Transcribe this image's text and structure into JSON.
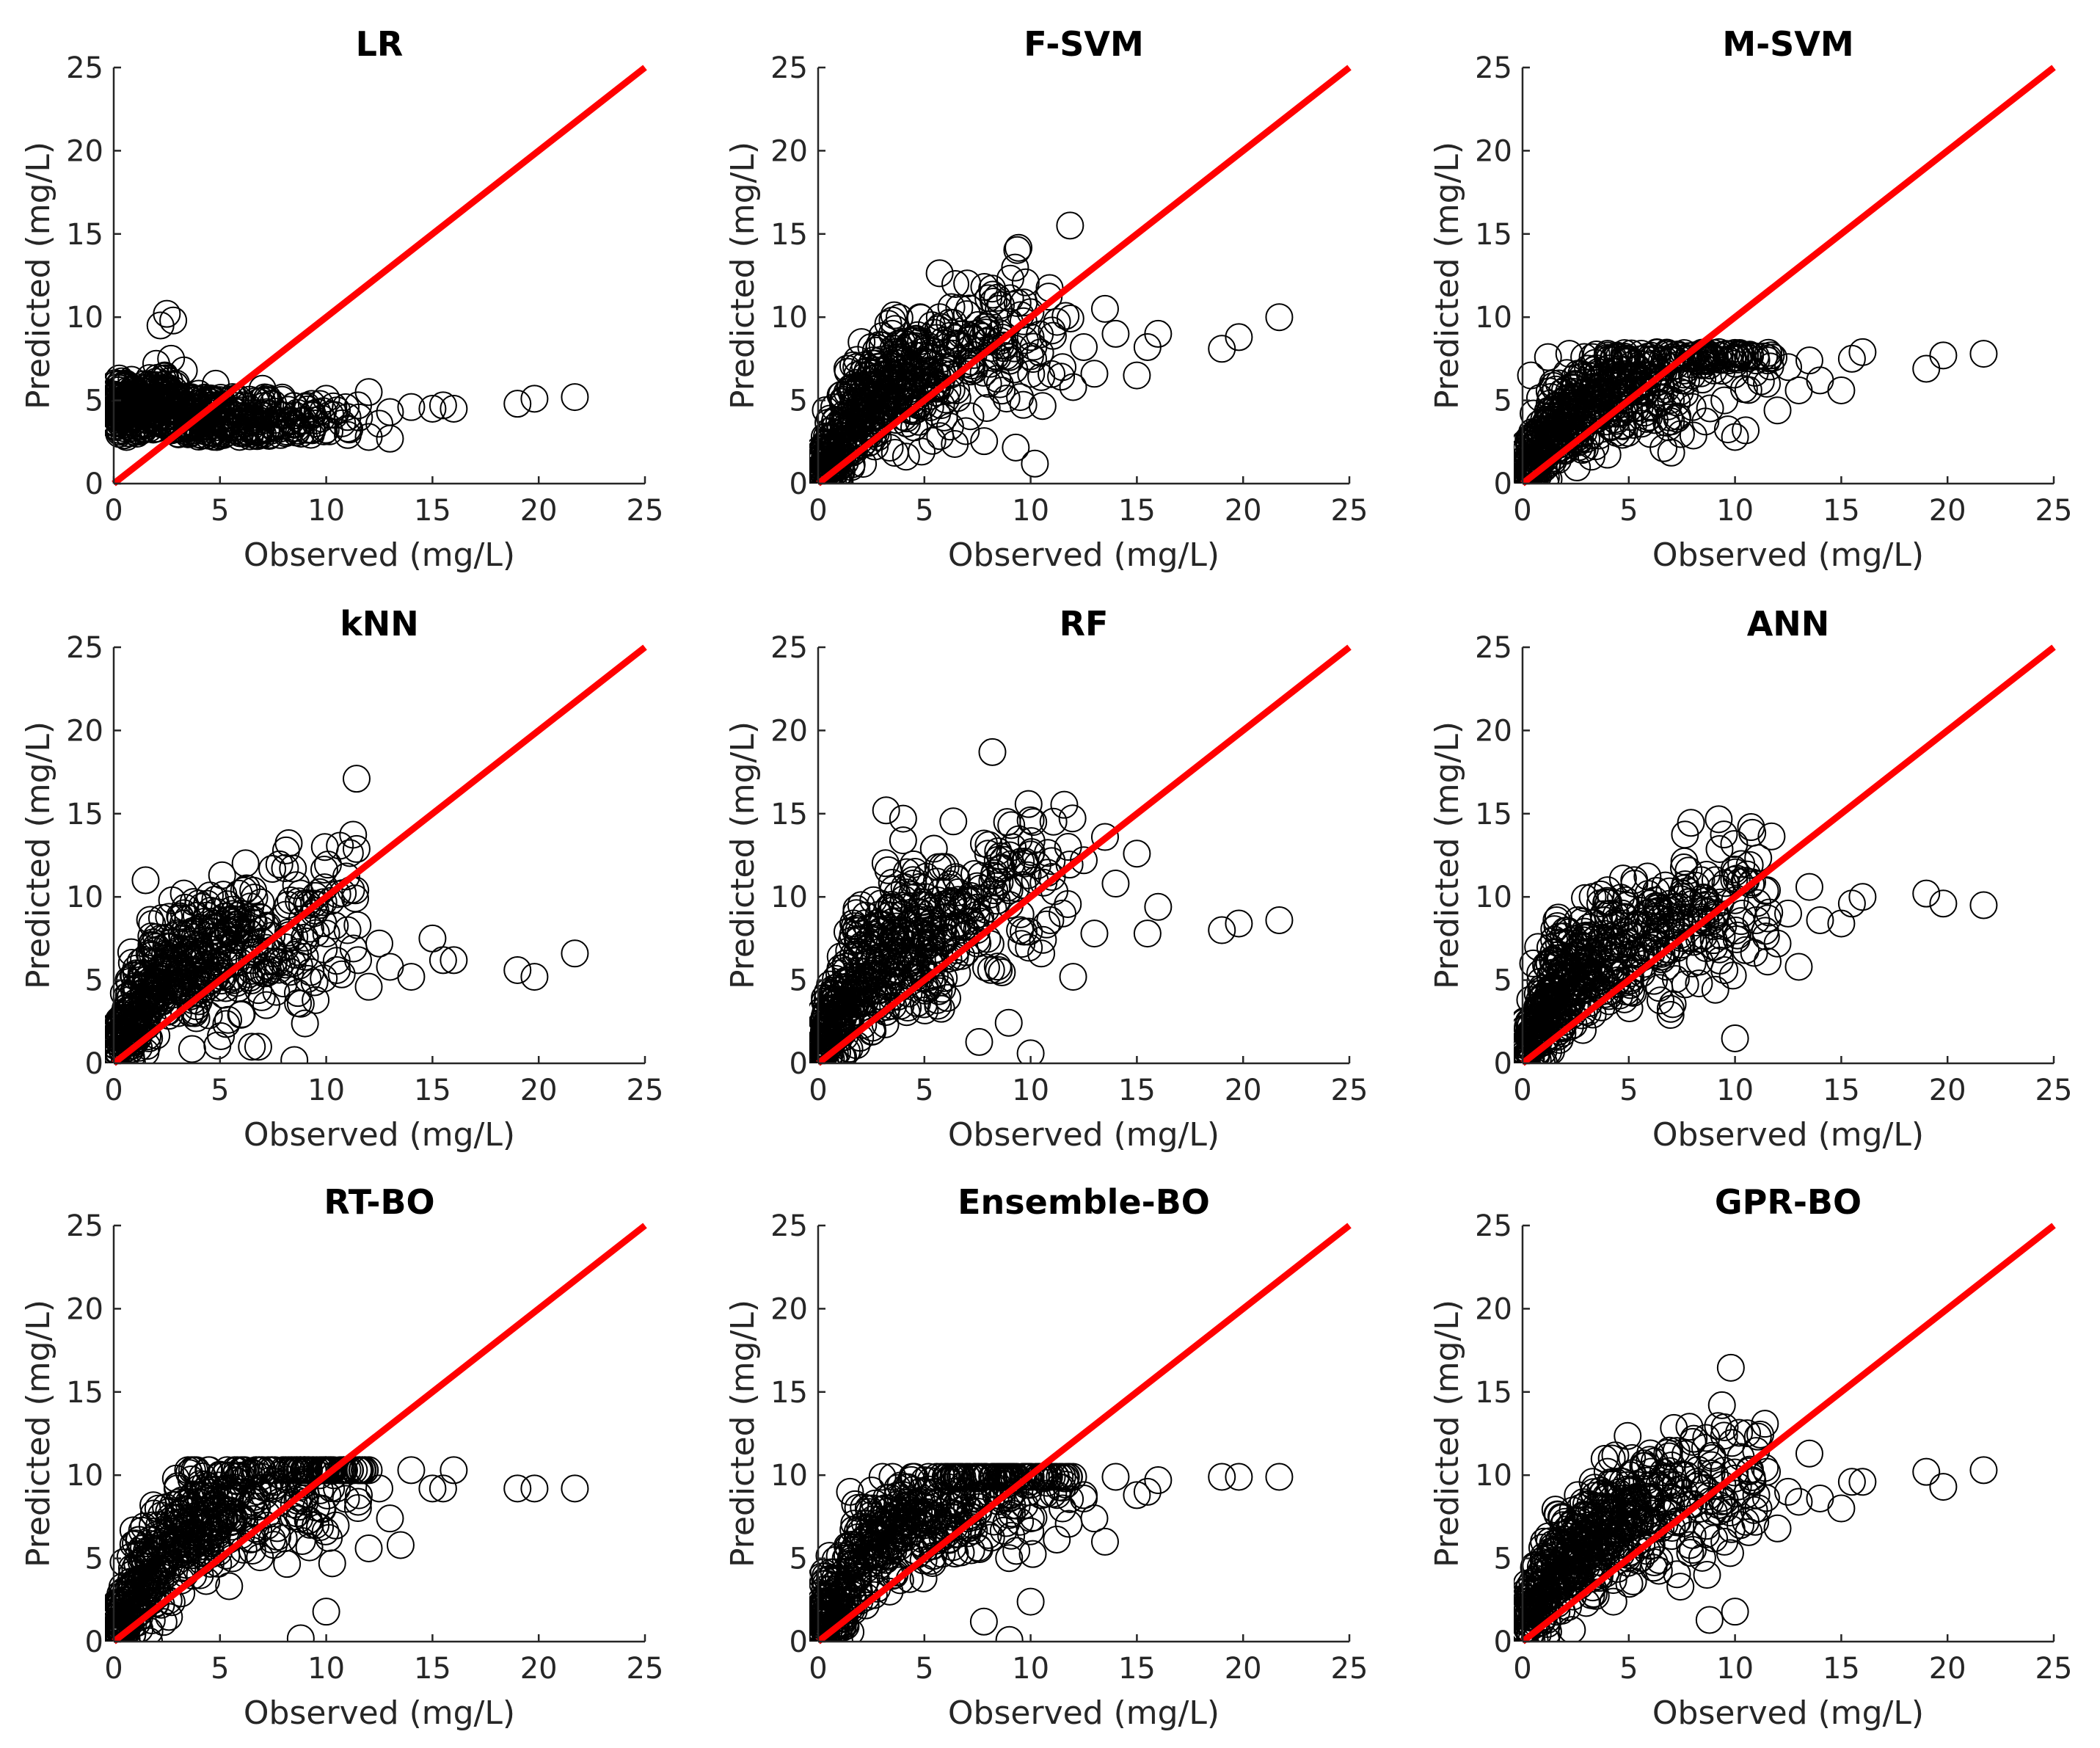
{
  "colors": {
    "marker": "#000000",
    "reference_line": "#ff0000",
    "axis": "#262626",
    "background": "#ffffff"
  },
  "chart_data": [
    {
      "type": "scatter",
      "title": "LR",
      "xlabel": "Observed (mg/L)",
      "ylabel": "Predicted (mg/L)",
      "xlim": [
        0,
        25
      ],
      "ylim": [
        0,
        25
      ],
      "xticks": [
        "0",
        "5",
        "10",
        "15",
        "20",
        "25"
      ],
      "yticks": [
        "0",
        "5",
        "10",
        "15",
        "20",
        "25"
      ],
      "marker": "open-circle",
      "reference_line": {
        "x": [
          0,
          25
        ],
        "y": [
          0,
          25
        ]
      },
      "points": {
        "x": [
          0.1,
          0.3,
          0.5,
          0.8,
          1.0,
          1.2,
          1.5,
          1.8,
          2.0,
          2.2,
          2.5,
          2.8,
          3.0,
          3.3,
          3.6,
          4.0,
          4.4,
          4.8,
          5.2,
          5.6,
          6.0,
          6.5,
          7.0,
          7.5,
          8.0,
          8.5,
          9.0,
          9.5,
          10.0,
          10.5,
          11.0,
          11.5,
          12.0,
          12.5,
          13.0,
          14.0,
          15.0,
          15.5,
          16.0,
          19.0,
          19.8,
          21.7,
          2.0,
          2.4,
          2.7,
          12.0,
          13.0,
          0.2,
          0.6,
          1.1
        ],
        "y": [
          3.4,
          3.8,
          2.9,
          4.2,
          3.1,
          4.6,
          3.6,
          5.0,
          3.3,
          9.5,
          10.2,
          9.8,
          4.1,
          6.8,
          3.0,
          5.4,
          4.0,
          6.0,
          3.5,
          5.2,
          4.4,
          3.2,
          5.7,
          4.8,
          4.1,
          3.6,
          4.6,
          3.8,
          5.1,
          4.4,
          4.0,
          4.7,
          5.5,
          3.6,
          4.3,
          4.6,
          4.5,
          4.7,
          4.5,
          4.8,
          5.1,
          5.2,
          7.2,
          6.5,
          7.5,
          2.8,
          2.7,
          5.2,
          2.8,
          3.0
        ]
      }
    },
    {
      "type": "scatter",
      "title": "F-SVM",
      "xlabel": "Observed (mg/L)",
      "ylabel": "Predicted (mg/L)",
      "xlim": [
        0,
        25
      ],
      "ylim": [
        0,
        25
      ],
      "xticks": [
        "0",
        "5",
        "10",
        "15",
        "20",
        "25"
      ],
      "yticks": [
        "0",
        "5",
        "10",
        "15",
        "20",
        "25"
      ],
      "marker": "open-circle",
      "reference_line": {
        "x": [
          0,
          25
        ],
        "y": [
          0,
          25
        ]
      },
      "points": {
        "x": [
          0.1,
          0.3,
          0.5,
          0.8,
          1.0,
          1.3,
          1.6,
          2.0,
          2.3,
          2.6,
          3.0,
          3.3,
          3.6,
          4.0,
          4.4,
          4.8,
          5.2,
          5.6,
          6.0,
          6.5,
          7.0,
          7.5,
          8.0,
          8.5,
          9.0,
          9.5,
          10.0,
          10.5,
          11.0,
          11.5,
          12.0,
          12.5,
          13.0,
          13.5,
          14.0,
          15.0,
          15.5,
          16.0,
          19.0,
          19.8,
          21.7,
          10.2,
          1.8,
          2.5,
          3.5
        ],
        "y": [
          0.5,
          2.2,
          0.8,
          3.4,
          1.6,
          4.0,
          2.6,
          5.8,
          3.2,
          7.4,
          4.6,
          9.6,
          6.2,
          8.0,
          5.0,
          10.0,
          6.8,
          4.2,
          8.4,
          5.6,
          7.2,
          9.0,
          6.0,
          10.5,
          7.6,
          5.2,
          8.8,
          6.4,
          9.2,
          7.0,
          5.8,
          8.2,
          6.6,
          10.5,
          9.0,
          6.5,
          8.2,
          9.0,
          8.1,
          8.8,
          10.0,
          1.2,
          7.0,
          8.2,
          9.8
        ]
      }
    },
    {
      "type": "scatter",
      "title": "M-SVM",
      "xlabel": "Observed (mg/L)",
      "ylabel": "Predicted (mg/L)",
      "xlim": [
        0,
        25
      ],
      "ylim": [
        0,
        25
      ],
      "xticks": [
        "0",
        "5",
        "10",
        "15",
        "20",
        "25"
      ],
      "yticks": [
        "0",
        "5",
        "10",
        "15",
        "20",
        "25"
      ],
      "marker": "open-circle",
      "reference_line": {
        "x": [
          0,
          25
        ],
        "y": [
          0,
          25
        ]
      },
      "points": {
        "x": [
          0.1,
          0.3,
          0.5,
          0.8,
          1.0,
          1.3,
          1.6,
          2.0,
          2.3,
          2.6,
          3.0,
          3.3,
          3.6,
          4.0,
          4.4,
          4.8,
          5.2,
          5.6,
          6.0,
          6.5,
          7.0,
          7.5,
          8.0,
          8.5,
          9.0,
          9.5,
          10.0,
          10.5,
          11.0,
          11.5,
          12.0,
          12.5,
          13.0,
          13.5,
          14.0,
          15.0,
          15.5,
          16.0,
          19.0,
          19.8,
          21.7,
          0.4,
          1.2,
          2.2,
          10.0
        ],
        "y": [
          0.6,
          2.4,
          1.0,
          3.6,
          1.8,
          4.4,
          2.8,
          5.6,
          3.4,
          6.6,
          4.8,
          7.6,
          5.8,
          7.8,
          4.2,
          7.5,
          6.4,
          3.6,
          7.4,
          5.2,
          7.0,
          6.2,
          4.6,
          7.6,
          6.8,
          5.0,
          7.2,
          3.2,
          7.4,
          6.0,
          4.4,
          7.0,
          5.6,
          7.4,
          6.2,
          5.6,
          7.5,
          7.9,
          6.9,
          7.7,
          7.8,
          6.5,
          7.6,
          7.8,
          2.8
        ]
      }
    },
    {
      "type": "scatter",
      "title": "kNN",
      "xlabel": "Observed (mg/L)",
      "ylabel": "Predicted (mg/L)",
      "xlim": [
        0,
        25
      ],
      "ylim": [
        0,
        25
      ],
      "xticks": [
        "0",
        "5",
        "10",
        "15",
        "20",
        "25"
      ],
      "yticks": [
        "0",
        "5",
        "10",
        "15",
        "20",
        "25"
      ],
      "marker": "open-circle",
      "reference_line": {
        "x": [
          0,
          25
        ],
        "y": [
          0,
          25
        ]
      },
      "points": {
        "x": [
          0.1,
          0.3,
          0.5,
          0.8,
          1.0,
          1.3,
          1.6,
          2.0,
          2.3,
          2.6,
          3.0,
          3.3,
          3.6,
          4.0,
          4.4,
          4.8,
          5.2,
          5.6,
          6.0,
          6.5,
          7.0,
          7.5,
          8.0,
          8.5,
          9.0,
          9.5,
          10.0,
          10.5,
          11.0,
          11.5,
          12.0,
          12.5,
          13.0,
          14.0,
          15.0,
          15.5,
          16.0,
          19.0,
          19.8,
          21.7,
          1.5,
          5.1,
          6.5,
          8.5,
          9.0
        ],
        "y": [
          0.8,
          2.6,
          1.4,
          4.0,
          2.2,
          5.4,
          3.2,
          7.0,
          4.0,
          8.8,
          5.4,
          10.2,
          6.8,
          9.6,
          4.6,
          8.4,
          7.4,
          5.2,
          9.0,
          6.2,
          8.0,
          6.6,
          4.8,
          7.6,
          6.4,
          3.8,
          7.8,
          5.6,
          8.0,
          6.2,
          4.6,
          7.2,
          5.8,
          5.2,
          7.5,
          6.2,
          6.2,
          5.6,
          5.2,
          6.6,
          11.0,
          11.3,
          1.0,
          0.2,
          2.4
        ]
      }
    },
    {
      "type": "scatter",
      "title": "RF",
      "xlabel": "Observed (mg/L)",
      "ylabel": "Predicted (mg/L)",
      "xlim": [
        0,
        25
      ],
      "ylim": [
        0,
        25
      ],
      "xticks": [
        "0",
        "5",
        "10",
        "15",
        "20",
        "25"
      ],
      "yticks": [
        "0",
        "5",
        "10",
        "15",
        "20",
        "25"
      ],
      "marker": "open-circle",
      "reference_line": {
        "x": [
          0,
          25
        ],
        "y": [
          0,
          25
        ]
      },
      "points": {
        "x": [
          0.1,
          0.3,
          0.5,
          0.8,
          1.0,
          1.3,
          1.6,
          2.0,
          2.3,
          2.6,
          3.0,
          3.3,
          3.6,
          4.0,
          4.4,
          4.8,
          5.2,
          5.6,
          6.0,
          6.5,
          7.0,
          7.5,
          8.0,
          8.5,
          9.0,
          9.5,
          10.0,
          10.5,
          11.0,
          11.5,
          12.0,
          12.5,
          13.0,
          13.5,
          14.0,
          15.0,
          15.5,
          16.0,
          19.0,
          19.8,
          21.7,
          8.2,
          3.2,
          4.0,
          10.0
        ],
        "y": [
          0.4,
          2.8,
          1.2,
          4.4,
          2.4,
          6.0,
          3.6,
          7.8,
          4.6,
          9.8,
          6.2,
          11.6,
          7.4,
          13.4,
          5.2,
          10.6,
          8.2,
          3.8,
          11.8,
          6.8,
          9.4,
          7.2,
          12.6,
          5.6,
          10.4,
          8.0,
          14.6,
          6.6,
          11.2,
          9.0,
          5.2,
          12.2,
          7.8,
          13.6,
          10.8,
          12.6,
          7.8,
          9.4,
          8.0,
          8.4,
          8.6,
          18.7,
          15.2,
          14.7,
          0.6
        ]
      }
    },
    {
      "type": "scatter",
      "title": "ANN",
      "xlabel": "Observed (mg/L)",
      "ylabel": "Predicted (mg/L)",
      "xlim": [
        0,
        25
      ],
      "ylim": [
        0,
        25
      ],
      "xticks": [
        "0",
        "5",
        "10",
        "15",
        "20",
        "25"
      ],
      "yticks": [
        "0",
        "5",
        "10",
        "15",
        "20",
        "25"
      ],
      "marker": "open-circle",
      "reference_line": {
        "x": [
          0,
          25
        ],
        "y": [
          0,
          25
        ]
      },
      "points": {
        "x": [
          0.1,
          0.3,
          0.5,
          0.8,
          1.0,
          1.3,
          1.6,
          2.0,
          2.3,
          2.6,
          3.0,
          3.3,
          3.6,
          4.0,
          4.4,
          4.8,
          5.2,
          5.6,
          6.0,
          6.5,
          7.0,
          7.5,
          8.0,
          8.5,
          9.0,
          9.5,
          10.0,
          10.5,
          11.0,
          11.5,
          12.0,
          12.5,
          13.0,
          13.5,
          14.0,
          15.0,
          15.5,
          16.0,
          19.0,
          19.8,
          21.7,
          10.0,
          0.5,
          1.6,
          7.5
        ],
        "y": [
          0.6,
          2.4,
          1.2,
          3.8,
          2.0,
          5.2,
          3.0,
          7.2,
          4.2,
          8.6,
          5.6,
          10.0,
          6.8,
          10.4,
          4.8,
          8.8,
          7.6,
          5.4,
          9.6,
          6.4,
          8.4,
          10.2,
          6.0,
          9.2,
          7.4,
          5.6,
          9.8,
          6.8,
          8.6,
          10.4,
          7.2,
          9.0,
          5.8,
          10.6,
          8.6,
          8.4,
          9.6,
          10.0,
          10.2,
          9.6,
          9.5,
          1.5,
          6.0,
          8.6,
          10.0
        ]
      }
    },
    {
      "type": "scatter",
      "title": "RT-BO",
      "xlabel": "Observed (mg/L)",
      "ylabel": "Predicted (mg/L)",
      "xlim": [
        0,
        25
      ],
      "ylim": [
        0,
        25
      ],
      "xticks": [
        "0",
        "5",
        "10",
        "15",
        "20",
        "25"
      ],
      "yticks": [
        "0",
        "5",
        "10",
        "15",
        "20",
        "25"
      ],
      "marker": "open-circle",
      "reference_line": {
        "x": [
          0,
          25
        ],
        "y": [
          0,
          25
        ]
      },
      "points": {
        "x": [
          0.1,
          0.3,
          0.5,
          0.8,
          1.0,
          1.3,
          1.6,
          2.0,
          2.3,
          2.6,
          3.0,
          3.5,
          4.0,
          4.5,
          5.0,
          5.5,
          6.0,
          6.5,
          7.0,
          7.5,
          8.0,
          8.5,
          9.0,
          9.5,
          10.0,
          10.5,
          11.0,
          11.5,
          12.0,
          12.5,
          13.0,
          14.0,
          15.0,
          15.5,
          16.0,
          19.0,
          19.8,
          21.7,
          8.8,
          10.0,
          3.0,
          6.0,
          12.0,
          13.5,
          2.2
        ],
        "y": [
          0.4,
          2.2,
          1.0,
          3.6,
          1.8,
          4.8,
          3.0,
          6.4,
          4.2,
          7.8,
          5.4,
          10.3,
          9.2,
          10.3,
          7.4,
          9.2,
          10.3,
          8.4,
          10.3,
          9.2,
          6.2,
          10.3,
          8.4,
          7.0,
          10.3,
          9.2,
          10.3,
          8.4,
          10.3,
          9.2,
          7.4,
          10.3,
          9.2,
          9.2,
          10.3,
          9.2,
          9.2,
          9.2,
          0.2,
          1.8,
          9.2,
          6.4,
          5.6,
          5.8,
          5.8
        ]
      }
    },
    {
      "type": "scatter",
      "title": "Ensemble-BO",
      "xlabel": "Observed (mg/L)",
      "ylabel": "Predicted (mg/L)",
      "xlim": [
        0,
        25
      ],
      "ylim": [
        0,
        25
      ],
      "xticks": [
        "0",
        "5",
        "10",
        "15",
        "20",
        "25"
      ],
      "yticks": [
        "0",
        "5",
        "10",
        "15",
        "20",
        "25"
      ],
      "marker": "open-circle",
      "reference_line": {
        "x": [
          0,
          25
        ],
        "y": [
          0,
          25
        ]
      },
      "points": {
        "x": [
          0.1,
          0.3,
          0.5,
          0.8,
          1.0,
          1.3,
          1.6,
          2.0,
          2.3,
          2.6,
          3.0,
          3.5,
          4.0,
          4.5,
          5.0,
          5.5,
          6.0,
          6.5,
          7.0,
          7.5,
          8.0,
          8.5,
          9.0,
          9.5,
          10.0,
          10.5,
          11.0,
          11.5,
          12.0,
          12.5,
          13.0,
          14.0,
          15.0,
          15.5,
          16.0,
          19.0,
          19.8,
          21.7,
          9.0,
          10.0,
          7.8,
          1.5,
          2.5,
          13.5,
          12.5
        ],
        "y": [
          0.4,
          2.4,
          1.2,
          3.8,
          2.0,
          5.0,
          3.2,
          6.6,
          4.4,
          8.0,
          5.6,
          9.9,
          8.8,
          9.9,
          7.0,
          9.0,
          9.9,
          8.2,
          9.9,
          8.8,
          6.4,
          9.9,
          8.6,
          7.2,
          9.9,
          8.8,
          9.9,
          8.0,
          9.9,
          8.6,
          7.4,
          9.9,
          8.8,
          9.0,
          9.7,
          9.9,
          9.9,
          9.9,
          0.1,
          2.4,
          1.2,
          9.0,
          7.6,
          6.0,
          8.8
        ]
      }
    },
    {
      "type": "scatter",
      "title": "GPR-BO",
      "xlabel": "Observed (mg/L)",
      "ylabel": "Predicted (mg/L)",
      "xlim": [
        0,
        25
      ],
      "ylim": [
        0,
        25
      ],
      "xticks": [
        "0",
        "5",
        "10",
        "15",
        "20",
        "25"
      ],
      "yticks": [
        "0",
        "5",
        "10",
        "15",
        "20",
        "25"
      ],
      "marker": "open-circle",
      "reference_line": {
        "x": [
          0,
          25
        ],
        "y": [
          0,
          25
        ]
      },
      "points": {
        "x": [
          0.1,
          0.3,
          0.5,
          0.8,
          1.0,
          1.3,
          1.6,
          2.0,
          2.3,
          2.6,
          3.0,
          3.3,
          3.6,
          4.0,
          4.4,
          4.8,
          5.2,
          5.6,
          6.0,
          6.5,
          7.0,
          7.5,
          8.0,
          8.5,
          9.0,
          9.5,
          10.0,
          10.5,
          11.0,
          11.5,
          12.0,
          12.5,
          13.0,
          13.5,
          14.0,
          15.0,
          15.5,
          16.0,
          19.0,
          19.8,
          21.7,
          8.0,
          8.8,
          10.0,
          4.2
        ],
        "y": [
          0.6,
          2.6,
          1.4,
          4.0,
          2.2,
          5.4,
          3.4,
          7.2,
          4.6,
          8.8,
          5.8,
          9.6,
          7.0,
          10.2,
          5.2,
          8.6,
          7.8,
          5.8,
          9.4,
          6.8,
          8.6,
          10.0,
          6.4,
          9.2,
          7.8,
          6.0,
          9.8,
          7.2,
          8.8,
          10.2,
          6.8,
          9.0,
          8.4,
          11.3,
          8.6,
          8.0,
          9.6,
          9.6,
          10.2,
          9.3,
          10.3,
          12.0,
          1.3,
          1.8,
          11.0
        ]
      }
    }
  ]
}
